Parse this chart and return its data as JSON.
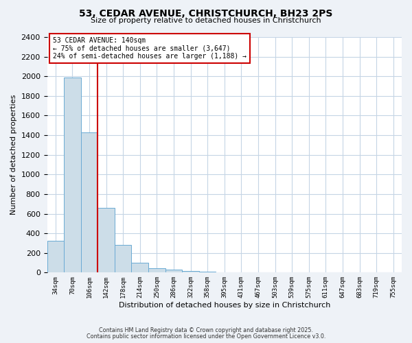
{
  "title_line1": "53, CEDAR AVENUE, CHRISTCHURCH, BH23 2PS",
  "title_line2": "Size of property relative to detached houses in Christchurch",
  "xlabel": "Distribution of detached houses by size in Christchurch",
  "ylabel": "Number of detached properties",
  "bin_labels": [
    "34sqm",
    "70sqm",
    "106sqm",
    "142sqm",
    "178sqm",
    "214sqm",
    "250sqm",
    "286sqm",
    "322sqm",
    "358sqm",
    "395sqm",
    "431sqm",
    "467sqm",
    "503sqm",
    "539sqm",
    "575sqm",
    "611sqm",
    "647sqm",
    "683sqm",
    "719sqm",
    "755sqm"
  ],
  "bar_values": [
    325,
    1990,
    1430,
    660,
    280,
    100,
    45,
    30,
    15,
    10,
    5,
    0,
    0,
    0,
    0,
    0,
    0,
    0,
    0,
    0,
    0
  ],
  "bar_color": "#ccdde8",
  "bar_edge_color": "#6aaad4",
  "vline_color": "#cc0000",
  "ylim": [
    0,
    2400
  ],
  "yticks": [
    0,
    200,
    400,
    600,
    800,
    1000,
    1200,
    1400,
    1600,
    1800,
    2000,
    2200,
    2400
  ],
  "annotation_title": "53 CEDAR AVENUE: 140sqm",
  "annotation_line2": "← 75% of detached houses are smaller (3,647)",
  "annotation_line3": "24% of semi-detached houses are larger (1,188) →",
  "annotation_box_color": "white",
  "annotation_box_edgecolor": "#cc0000",
  "footer_line1": "Contains HM Land Registry data © Crown copyright and database right 2025.",
  "footer_line2": "Contains public sector information licensed under the Open Government Licence v3.0.",
  "background_color": "#eef2f7",
  "plot_background": "white",
  "grid_color": "#c5d5e5",
  "title_fontsize": 10,
  "subtitle_fontsize": 8,
  "ylabel_text": "Number of detached properties"
}
